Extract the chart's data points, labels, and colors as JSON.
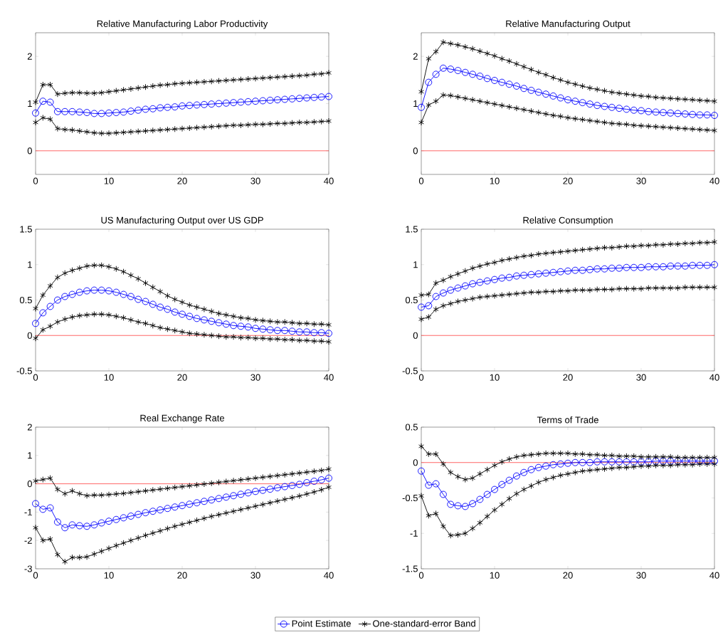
{
  "chart_data": [
    {
      "type": "line",
      "title": "Relative Manufacturing Labor Productivity",
      "x": [
        0,
        1,
        2,
        3,
        4,
        5,
        6,
        7,
        8,
        9,
        10,
        11,
        12,
        13,
        14,
        15,
        16,
        17,
        18,
        19,
        20,
        21,
        22,
        23,
        24,
        25,
        26,
        27,
        28,
        29,
        30,
        31,
        32,
        33,
        34,
        35,
        36,
        37,
        38,
        39,
        40
      ],
      "xlim": [
        0,
        40
      ],
      "ylim": [
        -0.5,
        2.5
      ],
      "xticks": [
        0,
        10,
        20,
        30,
        40
      ],
      "yticks": [
        0,
        1,
        2
      ],
      "ref_lines": [
        {
          "axis": "y",
          "value": 0,
          "color": "#ff0000"
        }
      ],
      "series": [
        {
          "color": "#0000ff",
          "marker": "circle",
          "values": [
            0.8,
            1.05,
            1.03,
            0.83,
            0.83,
            0.83,
            0.82,
            0.81,
            0.79,
            0.79,
            0.8,
            0.81,
            0.82,
            0.84,
            0.86,
            0.88,
            0.89,
            0.91,
            0.92,
            0.93,
            0.95,
            0.96,
            0.97,
            0.98,
            0.99,
            1.0,
            1.01,
            1.02,
            1.03,
            1.04,
            1.05,
            1.06,
            1.07,
            1.08,
            1.09,
            1.1,
            1.11,
            1.12,
            1.13,
            1.14,
            1.15
          ]
        },
        {
          "color": "#000000",
          "marker": "cross",
          "values": [
            1.03,
            1.4,
            1.4,
            1.2,
            1.22,
            1.23,
            1.23,
            1.22,
            1.22,
            1.23,
            1.25,
            1.27,
            1.29,
            1.31,
            1.33,
            1.35,
            1.37,
            1.39,
            1.4,
            1.42,
            1.43,
            1.44,
            1.45,
            1.46,
            1.47,
            1.48,
            1.49,
            1.5,
            1.51,
            1.52,
            1.53,
            1.54,
            1.55,
            1.56,
            1.57,
            1.58,
            1.59,
            1.6,
            1.62,
            1.63,
            1.65
          ]
        },
        {
          "color": "#000000",
          "marker": "cross",
          "values": [
            0.6,
            0.7,
            0.67,
            0.47,
            0.45,
            0.44,
            0.42,
            0.4,
            0.38,
            0.37,
            0.37,
            0.38,
            0.39,
            0.4,
            0.41,
            0.42,
            0.43,
            0.44,
            0.45,
            0.46,
            0.47,
            0.48,
            0.49,
            0.5,
            0.51,
            0.52,
            0.53,
            0.54,
            0.54,
            0.55,
            0.56,
            0.56,
            0.57,
            0.58,
            0.58,
            0.59,
            0.6,
            0.6,
            0.61,
            0.62,
            0.63
          ]
        }
      ]
    },
    {
      "type": "line",
      "title": "Relative Manufacturing Output",
      "x": [
        0,
        1,
        2,
        3,
        4,
        5,
        6,
        7,
        8,
        9,
        10,
        11,
        12,
        13,
        14,
        15,
        16,
        17,
        18,
        19,
        20,
        21,
        22,
        23,
        24,
        25,
        26,
        27,
        28,
        29,
        30,
        31,
        32,
        33,
        34,
        35,
        36,
        37,
        38,
        39,
        40
      ],
      "xlim": [
        0,
        40
      ],
      "ylim": [
        -0.5,
        2.5
      ],
      "xticks": [
        0,
        10,
        20,
        30,
        40
      ],
      "yticks": [
        0,
        1,
        2
      ],
      "ref_lines": [
        {
          "axis": "y",
          "value": 0,
          "color": "#ff0000"
        }
      ],
      "series": [
        {
          "color": "#0000ff",
          "marker": "circle",
          "values": [
            0.92,
            1.45,
            1.62,
            1.75,
            1.73,
            1.7,
            1.66,
            1.62,
            1.58,
            1.53,
            1.49,
            1.45,
            1.41,
            1.37,
            1.32,
            1.28,
            1.24,
            1.2,
            1.16,
            1.12,
            1.08,
            1.05,
            1.02,
            0.99,
            0.96,
            0.94,
            0.92,
            0.9,
            0.88,
            0.86,
            0.85,
            0.83,
            0.82,
            0.81,
            0.8,
            0.79,
            0.78,
            0.77,
            0.76,
            0.76,
            0.75
          ]
        },
        {
          "color": "#000000",
          "marker": "cross",
          "values": [
            1.25,
            1.95,
            2.1,
            2.3,
            2.27,
            2.24,
            2.2,
            2.16,
            2.11,
            2.06,
            2.01,
            1.95,
            1.9,
            1.84,
            1.78,
            1.72,
            1.66,
            1.61,
            1.55,
            1.5,
            1.45,
            1.41,
            1.37,
            1.33,
            1.3,
            1.27,
            1.24,
            1.22,
            1.2,
            1.18,
            1.16,
            1.15,
            1.13,
            1.12,
            1.11,
            1.1,
            1.09,
            1.08,
            1.07,
            1.06,
            1.05
          ]
        },
        {
          "color": "#000000",
          "marker": "cross",
          "values": [
            0.6,
            0.97,
            1.05,
            1.18,
            1.17,
            1.14,
            1.11,
            1.08,
            1.05,
            1.02,
            0.99,
            0.96,
            0.93,
            0.9,
            0.87,
            0.84,
            0.81,
            0.78,
            0.75,
            0.73,
            0.7,
            0.68,
            0.66,
            0.64,
            0.62,
            0.6,
            0.58,
            0.57,
            0.56,
            0.54,
            0.53,
            0.52,
            0.51,
            0.5,
            0.49,
            0.48,
            0.47,
            0.46,
            0.45,
            0.44,
            0.43
          ]
        }
      ]
    },
    {
      "type": "line",
      "title": "US Manufacturing Output over US GDP",
      "x": [
        0,
        1,
        2,
        3,
        4,
        5,
        6,
        7,
        8,
        9,
        10,
        11,
        12,
        13,
        14,
        15,
        16,
        17,
        18,
        19,
        20,
        21,
        22,
        23,
        24,
        25,
        26,
        27,
        28,
        29,
        30,
        31,
        32,
        33,
        34,
        35,
        36,
        37,
        38,
        39,
        40
      ],
      "xlim": [
        0,
        40
      ],
      "ylim": [
        -0.5,
        1.5
      ],
      "xticks": [
        0,
        10,
        20,
        30,
        40
      ],
      "yticks": [
        -0.5,
        0,
        0.5,
        1,
        1.5
      ],
      "ref_lines": [
        {
          "axis": "y",
          "value": 0,
          "color": "#ff0000"
        }
      ],
      "series": [
        {
          "color": "#0000ff",
          "marker": "circle",
          "values": [
            0.17,
            0.32,
            0.41,
            0.5,
            0.55,
            0.58,
            0.61,
            0.63,
            0.64,
            0.64,
            0.63,
            0.61,
            0.58,
            0.55,
            0.51,
            0.48,
            0.44,
            0.4,
            0.37,
            0.33,
            0.3,
            0.27,
            0.24,
            0.22,
            0.2,
            0.18,
            0.16,
            0.14,
            0.13,
            0.12,
            0.1,
            0.09,
            0.08,
            0.07,
            0.07,
            0.06,
            0.05,
            0.05,
            0.04,
            0.04,
            0.03
          ]
        },
        {
          "color": "#000000",
          "marker": "cross",
          "values": [
            0.38,
            0.57,
            0.7,
            0.82,
            0.88,
            0.92,
            0.95,
            0.98,
            0.99,
            0.99,
            0.97,
            0.94,
            0.9,
            0.85,
            0.8,
            0.74,
            0.68,
            0.62,
            0.56,
            0.51,
            0.47,
            0.43,
            0.4,
            0.37,
            0.34,
            0.31,
            0.29,
            0.27,
            0.25,
            0.24,
            0.22,
            0.21,
            0.2,
            0.19,
            0.19,
            0.18,
            0.17,
            0.17,
            0.16,
            0.16,
            0.15
          ]
        },
        {
          "color": "#000000",
          "marker": "cross",
          "values": [
            -0.04,
            0.08,
            0.13,
            0.19,
            0.23,
            0.26,
            0.28,
            0.29,
            0.3,
            0.3,
            0.29,
            0.27,
            0.25,
            0.22,
            0.19,
            0.17,
            0.14,
            0.11,
            0.09,
            0.07,
            0.05,
            0.03,
            0.02,
            0.01,
            0.0,
            -0.01,
            -0.02,
            -0.02,
            -0.03,
            -0.03,
            -0.04,
            -0.04,
            -0.05,
            -0.05,
            -0.06,
            -0.06,
            -0.07,
            -0.07,
            -0.08,
            -0.08,
            -0.09
          ]
        }
      ]
    },
    {
      "type": "line",
      "title": "Relative Consumption",
      "x": [
        0,
        1,
        2,
        3,
        4,
        5,
        6,
        7,
        8,
        9,
        10,
        11,
        12,
        13,
        14,
        15,
        16,
        17,
        18,
        19,
        20,
        21,
        22,
        23,
        24,
        25,
        26,
        27,
        28,
        29,
        30,
        31,
        32,
        33,
        34,
        35,
        36,
        37,
        38,
        39,
        40
      ],
      "xlim": [
        0,
        40
      ],
      "ylim": [
        -0.5,
        1.5
      ],
      "xticks": [
        0,
        10,
        20,
        30,
        40
      ],
      "yticks": [
        -0.5,
        0,
        0.5,
        1,
        1.5
      ],
      "ref_lines": [
        {
          "axis": "y",
          "value": 0,
          "color": "#ff0000"
        }
      ],
      "series": [
        {
          "color": "#0000ff",
          "marker": "circle",
          "values": [
            0.4,
            0.42,
            0.55,
            0.6,
            0.64,
            0.67,
            0.7,
            0.73,
            0.75,
            0.77,
            0.79,
            0.81,
            0.82,
            0.84,
            0.85,
            0.86,
            0.87,
            0.88,
            0.89,
            0.9,
            0.91,
            0.92,
            0.92,
            0.93,
            0.94,
            0.94,
            0.95,
            0.95,
            0.96,
            0.96,
            0.96,
            0.97,
            0.97,
            0.97,
            0.98,
            0.98,
            0.98,
            0.99,
            0.99,
            0.99,
            1.0
          ]
        },
        {
          "color": "#000000",
          "marker": "cross",
          "values": [
            0.57,
            0.58,
            0.74,
            0.78,
            0.83,
            0.87,
            0.91,
            0.95,
            0.98,
            1.01,
            1.03,
            1.06,
            1.08,
            1.1,
            1.12,
            1.13,
            1.15,
            1.16,
            1.17,
            1.18,
            1.19,
            1.2,
            1.21,
            1.22,
            1.23,
            1.24,
            1.24,
            1.25,
            1.26,
            1.26,
            1.27,
            1.27,
            1.28,
            1.28,
            1.29,
            1.29,
            1.3,
            1.3,
            1.31,
            1.31,
            1.32
          ]
        },
        {
          "color": "#000000",
          "marker": "cross",
          "values": [
            0.23,
            0.26,
            0.37,
            0.42,
            0.45,
            0.48,
            0.5,
            0.52,
            0.54,
            0.55,
            0.56,
            0.57,
            0.58,
            0.59,
            0.6,
            0.61,
            0.61,
            0.62,
            0.62,
            0.63,
            0.63,
            0.64,
            0.64,
            0.64,
            0.65,
            0.65,
            0.65,
            0.66,
            0.66,
            0.66,
            0.66,
            0.67,
            0.67,
            0.67,
            0.67,
            0.67,
            0.68,
            0.68,
            0.68,
            0.68,
            0.68
          ]
        }
      ]
    },
    {
      "type": "line",
      "title": "Real Exchange Rate",
      "x": [
        0,
        1,
        2,
        3,
        4,
        5,
        6,
        7,
        8,
        9,
        10,
        11,
        12,
        13,
        14,
        15,
        16,
        17,
        18,
        19,
        20,
        21,
        22,
        23,
        24,
        25,
        26,
        27,
        28,
        29,
        30,
        31,
        32,
        33,
        34,
        35,
        36,
        37,
        38,
        39,
        40
      ],
      "xlim": [
        0,
        40
      ],
      "ylim": [
        -3,
        2
      ],
      "xticks": [
        0,
        10,
        20,
        30,
        40
      ],
      "yticks": [
        -3,
        -2,
        -1,
        0,
        1,
        2
      ],
      "ref_lines": [
        {
          "axis": "y",
          "value": 0,
          "color": "#ff0000"
        }
      ],
      "series": [
        {
          "color": "#0000ff",
          "marker": "circle",
          "values": [
            -0.7,
            -0.9,
            -0.85,
            -1.35,
            -1.55,
            -1.45,
            -1.48,
            -1.5,
            -1.45,
            -1.38,
            -1.32,
            -1.26,
            -1.2,
            -1.14,
            -1.08,
            -1.02,
            -0.97,
            -0.92,
            -0.87,
            -0.82,
            -0.77,
            -0.72,
            -0.67,
            -0.62,
            -0.57,
            -0.52,
            -0.47,
            -0.42,
            -0.37,
            -0.32,
            -0.27,
            -0.23,
            -0.19,
            -0.14,
            -0.1,
            -0.06,
            -0.02,
            0.04,
            0.09,
            0.14,
            0.2
          ]
        },
        {
          "color": "#000000",
          "marker": "cross",
          "values": [
            0.1,
            0.15,
            0.2,
            -0.2,
            -0.35,
            -0.25,
            -0.35,
            -0.42,
            -0.4,
            -0.4,
            -0.38,
            -0.36,
            -0.34,
            -0.31,
            -0.28,
            -0.25,
            -0.22,
            -0.19,
            -0.16,
            -0.13,
            -0.1,
            -0.07,
            -0.04,
            -0.01,
            0.02,
            0.05,
            0.08,
            0.11,
            0.14,
            0.17,
            0.2,
            0.23,
            0.26,
            0.29,
            0.32,
            0.35,
            0.38,
            0.41,
            0.44,
            0.47,
            0.52
          ]
        },
        {
          "color": "#000000",
          "marker": "cross",
          "values": [
            -1.55,
            -2.0,
            -1.95,
            -2.5,
            -2.75,
            -2.6,
            -2.6,
            -2.58,
            -2.48,
            -2.38,
            -2.28,
            -2.18,
            -2.09,
            -2.0,
            -1.91,
            -1.82,
            -1.74,
            -1.66,
            -1.58,
            -1.5,
            -1.43,
            -1.36,
            -1.29,
            -1.22,
            -1.15,
            -1.09,
            -1.03,
            -0.97,
            -0.91,
            -0.85,
            -0.79,
            -0.73,
            -0.67,
            -0.61,
            -0.55,
            -0.49,
            -0.43,
            -0.36,
            -0.29,
            -0.21,
            -0.12
          ]
        }
      ]
    },
    {
      "type": "line",
      "title": "Terms of Trade",
      "x": [
        0,
        1,
        2,
        3,
        4,
        5,
        6,
        7,
        8,
        9,
        10,
        11,
        12,
        13,
        14,
        15,
        16,
        17,
        18,
        19,
        20,
        21,
        22,
        23,
        24,
        25,
        26,
        27,
        28,
        29,
        30,
        31,
        32,
        33,
        34,
        35,
        36,
        37,
        38,
        39,
        40
      ],
      "xlim": [
        0,
        40
      ],
      "ylim": [
        -1.5,
        0.5
      ],
      "xticks": [
        0,
        10,
        20,
        30,
        40
      ],
      "yticks": [
        -1.5,
        -1,
        -0.5,
        0,
        0.5
      ],
      "legend": "bottom",
      "ref_lines": [
        {
          "axis": "y",
          "value": 0,
          "color": "#ff0000"
        }
      ],
      "series": [
        {
          "name": "Point Estimate",
          "color": "#0000ff",
          "marker": "circle",
          "values": [
            -0.12,
            -0.32,
            -0.3,
            -0.45,
            -0.59,
            -0.61,
            -0.62,
            -0.58,
            -0.52,
            -0.45,
            -0.38,
            -0.31,
            -0.25,
            -0.19,
            -0.14,
            -0.1,
            -0.07,
            -0.05,
            -0.03,
            -0.02,
            -0.01,
            0.0,
            0.0,
            0.0,
            0.01,
            0.01,
            0.01,
            0.01,
            0.01,
            0.01,
            0.01,
            0.01,
            0.02,
            0.02,
            0.02,
            0.02,
            0.02,
            0.02,
            0.02,
            0.02,
            0.02
          ]
        },
        {
          "name": "One-standard-error Band",
          "color": "#000000",
          "marker": "cross",
          "values": [
            0.23,
            0.12,
            0.12,
            -0.02,
            -0.14,
            -0.2,
            -0.24,
            -0.22,
            -0.16,
            -0.1,
            -0.04,
            0.01,
            0.05,
            0.08,
            0.1,
            0.11,
            0.12,
            0.13,
            0.13,
            0.13,
            0.13,
            0.12,
            0.12,
            0.11,
            0.11,
            0.1,
            0.1,
            0.09,
            0.09,
            0.09,
            0.08,
            0.08,
            0.08,
            0.08,
            0.08,
            0.07,
            0.07,
            0.07,
            0.07,
            0.07,
            0.07
          ]
        },
        {
          "color": "#000000",
          "marker": "cross",
          "values": [
            -0.47,
            -0.75,
            -0.72,
            -0.9,
            -1.03,
            -1.02,
            -1.0,
            -0.93,
            -0.85,
            -0.76,
            -0.67,
            -0.59,
            -0.51,
            -0.44,
            -0.38,
            -0.33,
            -0.28,
            -0.24,
            -0.21,
            -0.18,
            -0.16,
            -0.14,
            -0.12,
            -0.11,
            -0.1,
            -0.09,
            -0.08,
            -0.07,
            -0.07,
            -0.06,
            -0.05,
            -0.05,
            -0.04,
            -0.04,
            -0.04,
            -0.03,
            -0.03,
            -0.03,
            -0.02,
            -0.02,
            -0.02
          ]
        }
      ]
    }
  ]
}
